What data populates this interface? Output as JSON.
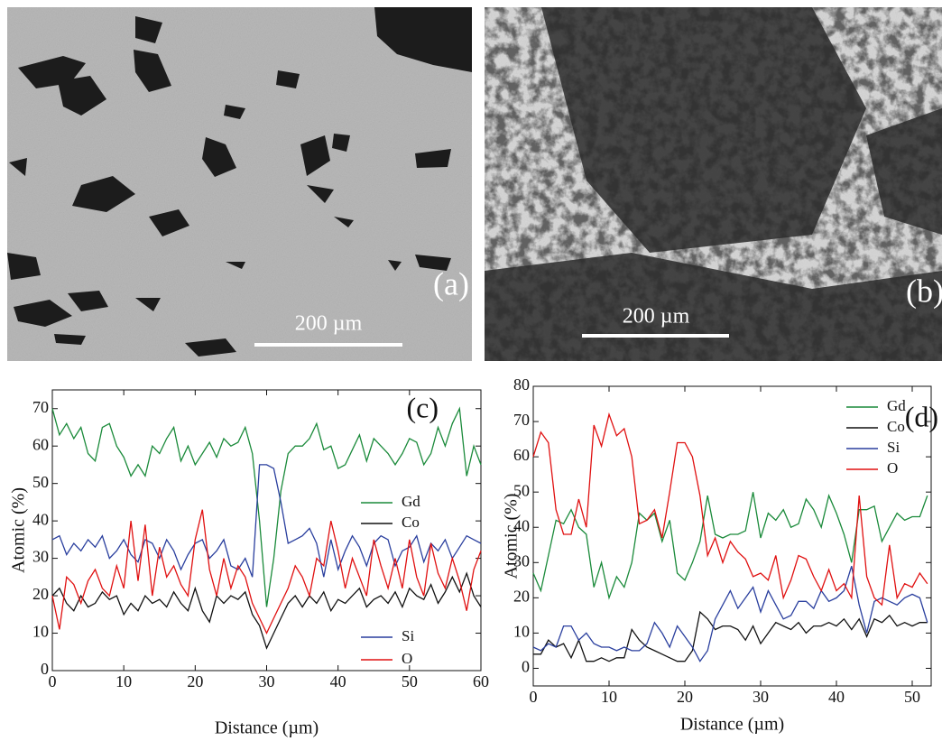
{
  "images": [
    {
      "label": "(a)",
      "scale_bar": "200 µm"
    },
    {
      "label": "(b)",
      "scale_bar": "200 µm"
    }
  ],
  "chart_data": [
    {
      "type": "line",
      "label": "(c)",
      "xlabel": "Distance (µm)",
      "ylabel": "Atomic (%)",
      "xlim": [
        0,
        60
      ],
      "xticks": [
        0,
        10,
        20,
        30,
        40,
        50,
        60
      ],
      "ylim": [
        0,
        75
      ],
      "yticks": [
        0,
        10,
        20,
        30,
        40,
        50,
        60,
        70
      ],
      "x": [
        0,
        1,
        2,
        3,
        4,
        5,
        6,
        7,
        8,
        9,
        10,
        11,
        12,
        13,
        14,
        15,
        16,
        17,
        18,
        19,
        20,
        21,
        22,
        23,
        24,
        25,
        26,
        27,
        28,
        29,
        30,
        31,
        32,
        33,
        34,
        35,
        36,
        37,
        38,
        39,
        40,
        41,
        42,
        43,
        44,
        45,
        46,
        47,
        48,
        49,
        50,
        51,
        52,
        53,
        54,
        55,
        56,
        57,
        58,
        59,
        60
      ],
      "series": [
        {
          "name": "Gd",
          "color": "#1a8a3a",
          "values": [
            70,
            63,
            66,
            62,
            65,
            58,
            56,
            65,
            66,
            60,
            57,
            52,
            55,
            52,
            60,
            58,
            62,
            65,
            56,
            60,
            55,
            58,
            61,
            57,
            62,
            60,
            61,
            65,
            58,
            40,
            17,
            30,
            48,
            58,
            60,
            60,
            62,
            66,
            59,
            60,
            54,
            55,
            59,
            63,
            56,
            62,
            60,
            58,
            55,
            58,
            62,
            61,
            55,
            58,
            65,
            60,
            66,
            70,
            52,
            60,
            55
          ]
        },
        {
          "name": "Co",
          "color": "#111111",
          "values": [
            20,
            22,
            18,
            16,
            20,
            17,
            18,
            21,
            19,
            20,
            15,
            18,
            16,
            20,
            18,
            19,
            17,
            21,
            18,
            16,
            22,
            16,
            13,
            20,
            18,
            20,
            19,
            21,
            15,
            12,
            6,
            10,
            14,
            18,
            20,
            17,
            20,
            18,
            21,
            16,
            19,
            18,
            20,
            22,
            17,
            19,
            20,
            18,
            21,
            17,
            22,
            20,
            19,
            23,
            18,
            21,
            25,
            21,
            26,
            20,
            17
          ]
        },
        {
          "name": "Si",
          "color": "#2a3f9e",
          "values": [
            35,
            36,
            31,
            34,
            32,
            35,
            33,
            36,
            30,
            32,
            35,
            31,
            29,
            35,
            34,
            30,
            35,
            32,
            27,
            31,
            34,
            35,
            30,
            32,
            35,
            28,
            27,
            30,
            25,
            55,
            55,
            54,
            45,
            34,
            35,
            36,
            38,
            34,
            25,
            35,
            27,
            32,
            36,
            33,
            28,
            34,
            36,
            35,
            28,
            32,
            33,
            36,
            29,
            34,
            32,
            35,
            30,
            33,
            36,
            35,
            34
          ]
        },
        {
          "name": "O",
          "color": "#e01010",
          "values": [
            20,
            11,
            25,
            23,
            18,
            24,
            27,
            22,
            20,
            28,
            22,
            40,
            24,
            39,
            20,
            33,
            25,
            28,
            23,
            20,
            35,
            43,
            27,
            20,
            30,
            22,
            28,
            25,
            18,
            14,
            10,
            14,
            18,
            22,
            28,
            25,
            20,
            30,
            28,
            40,
            32,
            22,
            30,
            25,
            20,
            35,
            28,
            22,
            30,
            22,
            35,
            25,
            20,
            34,
            26,
            22,
            30,
            24,
            16,
            27,
            32
          ]
        }
      ]
    },
    {
      "type": "line",
      "label": "(d)",
      "xlabel": "Distance (µm)",
      "ylabel": "Atomic (%)",
      "xlim": [
        0,
        52.5
      ],
      "xticks": [
        0,
        10,
        20,
        30,
        40,
        50
      ],
      "ylim": [
        -5,
        80
      ],
      "yticks": [
        0,
        10,
        20,
        30,
        40,
        50,
        60,
        70,
        80
      ],
      "x": [
        0,
        1,
        2,
        3,
        4,
        5,
        6,
        7,
        8,
        9,
        10,
        11,
        12,
        13,
        14,
        15,
        16,
        17,
        18,
        19,
        20,
        21,
        22,
        23,
        24,
        25,
        26,
        27,
        28,
        29,
        30,
        31,
        32,
        33,
        34,
        35,
        36,
        37,
        38,
        39,
        40,
        41,
        42,
        43,
        44,
        45,
        46,
        47,
        48,
        49,
        50,
        51,
        52
      ],
      "series": [
        {
          "name": "Gd",
          "color": "#1a8a3a",
          "values": [
            27,
            22,
            32,
            42,
            41,
            45,
            40,
            38,
            23,
            30,
            20,
            26,
            23,
            30,
            44,
            42,
            44,
            36,
            42,
            27,
            25,
            30,
            36,
            49,
            38,
            37,
            38,
            38,
            39,
            50,
            37,
            44,
            42,
            45,
            40,
            41,
            48,
            45,
            40,
            49,
            44,
            38,
            30,
            45,
            45,
            46,
            36,
            40,
            44,
            42,
            43,
            43,
            49
          ]
        },
        {
          "name": "Co",
          "color": "#111111",
          "values": [
            4,
            4,
            8,
            6,
            7,
            3,
            8,
            2,
            2,
            3,
            2,
            3,
            3,
            11,
            8,
            6,
            5,
            4,
            3,
            2,
            2,
            5,
            16,
            14,
            11,
            12,
            12,
            11,
            8,
            12,
            7,
            10,
            13,
            12,
            11,
            13,
            10,
            12,
            12,
            13,
            12,
            14,
            11,
            14,
            9,
            14,
            13,
            15,
            12,
            13,
            12,
            13,
            13
          ]
        },
        {
          "name": "Si",
          "color": "#2a3f9e",
          "values": [
            6,
            5,
            7,
            6,
            12,
            12,
            8,
            10,
            7,
            6,
            6,
            5,
            6,
            5,
            5,
            7,
            13,
            10,
            6,
            12,
            9,
            6,
            2,
            5,
            14,
            18,
            22,
            17,
            20,
            23,
            16,
            22,
            18,
            14,
            15,
            19,
            19,
            17,
            22,
            19,
            20,
            22,
            29,
            18,
            10,
            19,
            20,
            19,
            18,
            20,
            21,
            20,
            13
          ]
        },
        {
          "name": "O",
          "color": "#e01010",
          "values": [
            60,
            67,
            64,
            45,
            38,
            38,
            48,
            40,
            69,
            63,
            72,
            66,
            68,
            60,
            41,
            42,
            45,
            37,
            50,
            64,
            64,
            60,
            49,
            32,
            37,
            30,
            36,
            33,
            31,
            26,
            27,
            25,
            32,
            20,
            25,
            32,
            31,
            26,
            22,
            28,
            22,
            24,
            20,
            49,
            26,
            20,
            18,
            35,
            20,
            24,
            23,
            27,
            24
          ]
        }
      ]
    }
  ]
}
